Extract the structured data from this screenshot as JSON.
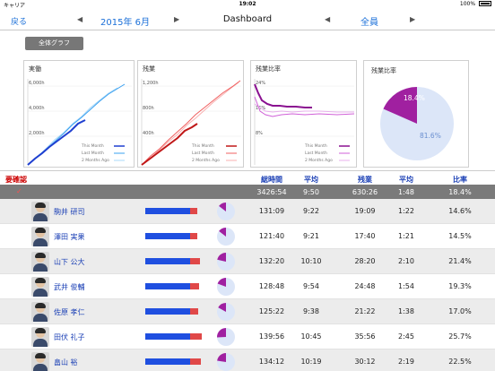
{
  "status": {
    "carrier": "キャリア",
    "wifi": "wifi-icon",
    "time": "19:02",
    "battery": "100%"
  },
  "nav": {
    "back": "戻る",
    "month": "2015年 6月",
    "title": "Dashboard",
    "who": "全員"
  },
  "graph_button": "全体グラフ",
  "colors": {
    "accent": "#1a6fd8",
    "blue": "#1f4fe0",
    "red": "#e04848",
    "purple": "#a020a0",
    "header": "#1a3fb5",
    "alert": "#cc0000"
  },
  "charts": {
    "jitsudo": {
      "title": "実働",
      "y_ticks": [
        "6,000h",
        "4,000h",
        "2,000h"
      ],
      "legend": [
        "This Month",
        "Last Month",
        "2 Months Ago"
      ],
      "colors": [
        "#1f3fd0",
        "#3aa0f0",
        "#a8d8f8"
      ]
    },
    "zangyo": {
      "title": "残業",
      "y_ticks": [
        "1,200h",
        "800h",
        "400h"
      ],
      "legend": [
        "This Month",
        "Last Month",
        "2 Months Ago"
      ],
      "colors": [
        "#c01818",
        "#f06060",
        "#f8b0b0"
      ]
    },
    "ratio": {
      "title": "残業比率",
      "y_ticks": [
        "24%",
        "16%",
        "8%"
      ],
      "legend": [
        "This Month",
        "Last Month",
        "2 Months Ago"
      ],
      "colors": [
        "#8a1090",
        "#d060d8",
        "#e8b0ec"
      ]
    },
    "pie": {
      "title": "残業比率",
      "overtime_pct": 18.4,
      "overtime_label": "18.4%",
      "rest_label": "81.6%"
    }
  },
  "table": {
    "need_check": "要確認",
    "headers": [
      "総時間",
      "平均",
      "残業",
      "平均",
      "比率"
    ],
    "totals": {
      "tick": "✓",
      "values": [
        "3426:54",
        "9:50",
        "630:26",
        "1:48",
        "18.4%"
      ]
    },
    "rows": [
      {
        "name": "駒井 研司",
        "total": "131:09",
        "avg": "9:22",
        "ot": "19:09",
        "ot_avg": "1:22",
        "ratio": "14.6%",
        "r": 0.146
      },
      {
        "name": "澤田 実果",
        "total": "121:40",
        "avg": "9:21",
        "ot": "17:40",
        "ot_avg": "1:21",
        "ratio": "14.5%",
        "r": 0.145
      },
      {
        "name": "山下 公大",
        "total": "132:20",
        "avg": "10:10",
        "ot": "28:20",
        "ot_avg": "2:10",
        "ratio": "21.4%",
        "r": 0.214
      },
      {
        "name": "武井 俊輔",
        "total": "128:48",
        "avg": "9:54",
        "ot": "24:48",
        "ot_avg": "1:54",
        "ratio": "19.3%",
        "r": 0.193
      },
      {
        "name": "佐原 孝仁",
        "total": "125:22",
        "avg": "9:38",
        "ot": "21:22",
        "ot_avg": "1:38",
        "ratio": "17.0%",
        "r": 0.17
      },
      {
        "name": "田伏 礼子",
        "total": "139:56",
        "avg": "10:45",
        "ot": "35:56",
        "ot_avg": "2:45",
        "ratio": "25.7%",
        "r": 0.257
      },
      {
        "name": "畠山 裕",
        "total": "134:12",
        "avg": "10:19",
        "ot": "30:12",
        "ot_avg": "2:19",
        "ratio": "22.5%",
        "r": 0.225
      }
    ]
  }
}
